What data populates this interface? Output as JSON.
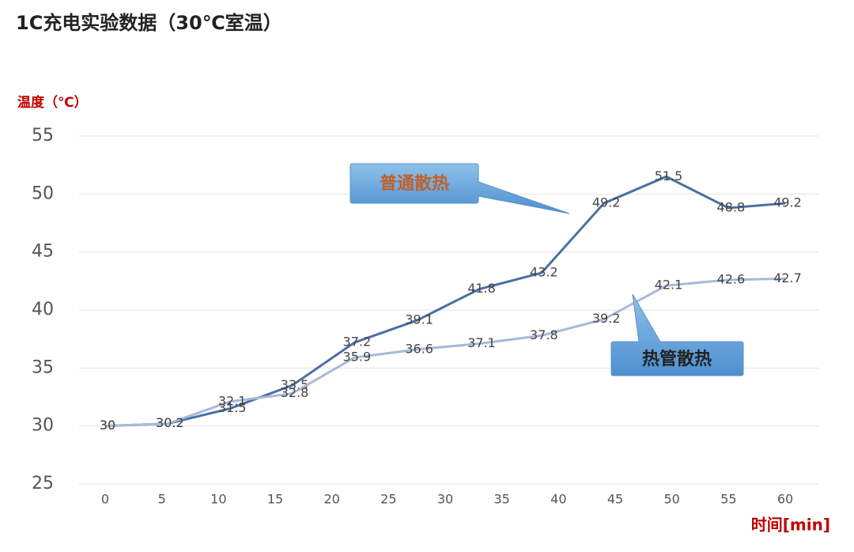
{
  "chart_data": {
    "type": "line",
    "title": "1C充电实验数据（30℃室温）",
    "y_label": "温度（℃）",
    "x_label": "时间[min]",
    "x": [
      0,
      5.5,
      11,
      16.5,
      22,
      27.5,
      33,
      38.5,
      44,
      49.5,
      55,
      60
    ],
    "xlim": [
      0,
      60
    ],
    "xticks": [
      0,
      5,
      10,
      15,
      20,
      25,
      30,
      35,
      40,
      45,
      50,
      55,
      60
    ],
    "ylim": [
      25,
      55
    ],
    "yticks": [
      25,
      30,
      35,
      40,
      45,
      50,
      55
    ],
    "grid": true,
    "series": [
      {
        "name": "普通散热",
        "color": "#4a6fa5",
        "values": [
          30,
          30.2,
          31.5,
          33.5,
          37.2,
          39.1,
          41.8,
          43.2,
          49.2,
          51.5,
          48.8,
          49.2
        ]
      },
      {
        "name": "热管散热",
        "color": "#a9b8da",
        "values": [
          30,
          30.2,
          32.1,
          32.8,
          35.9,
          36.6,
          37.1,
          37.8,
          39.2,
          42.1,
          42.6,
          42.7
        ]
      }
    ]
  }
}
